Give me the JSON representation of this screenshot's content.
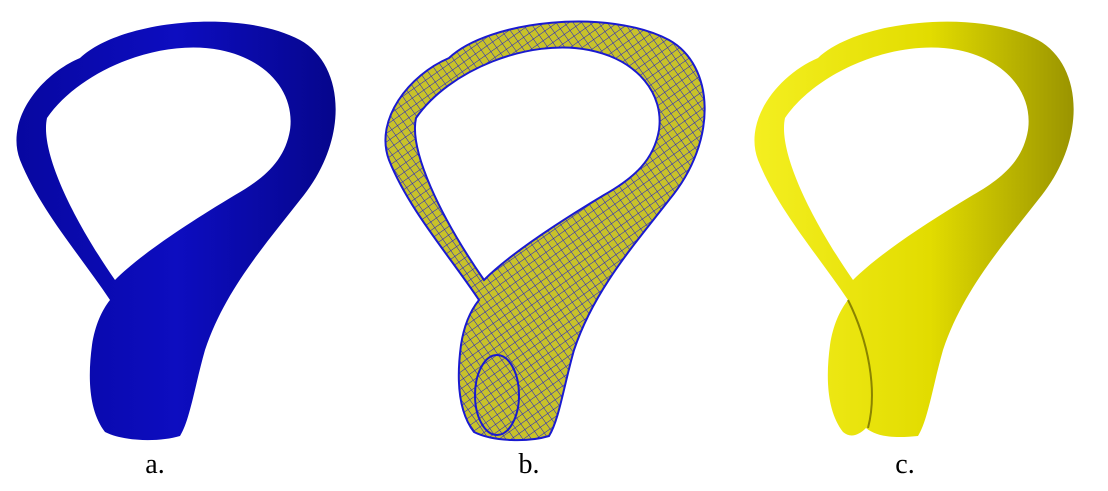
{
  "figure": {
    "panels": [
      {
        "label": "a.",
        "rendering": "solid-surface",
        "surface_color": "#0a0ab4"
      },
      {
        "label": "b.",
        "rendering": "wireframe-over-surface",
        "surface_color": "#c8c22a",
        "mesh_color": "#1a1ad0"
      },
      {
        "label": "c.",
        "rendering": "shaded-surface",
        "surface_color": "#e6e000"
      }
    ]
  }
}
